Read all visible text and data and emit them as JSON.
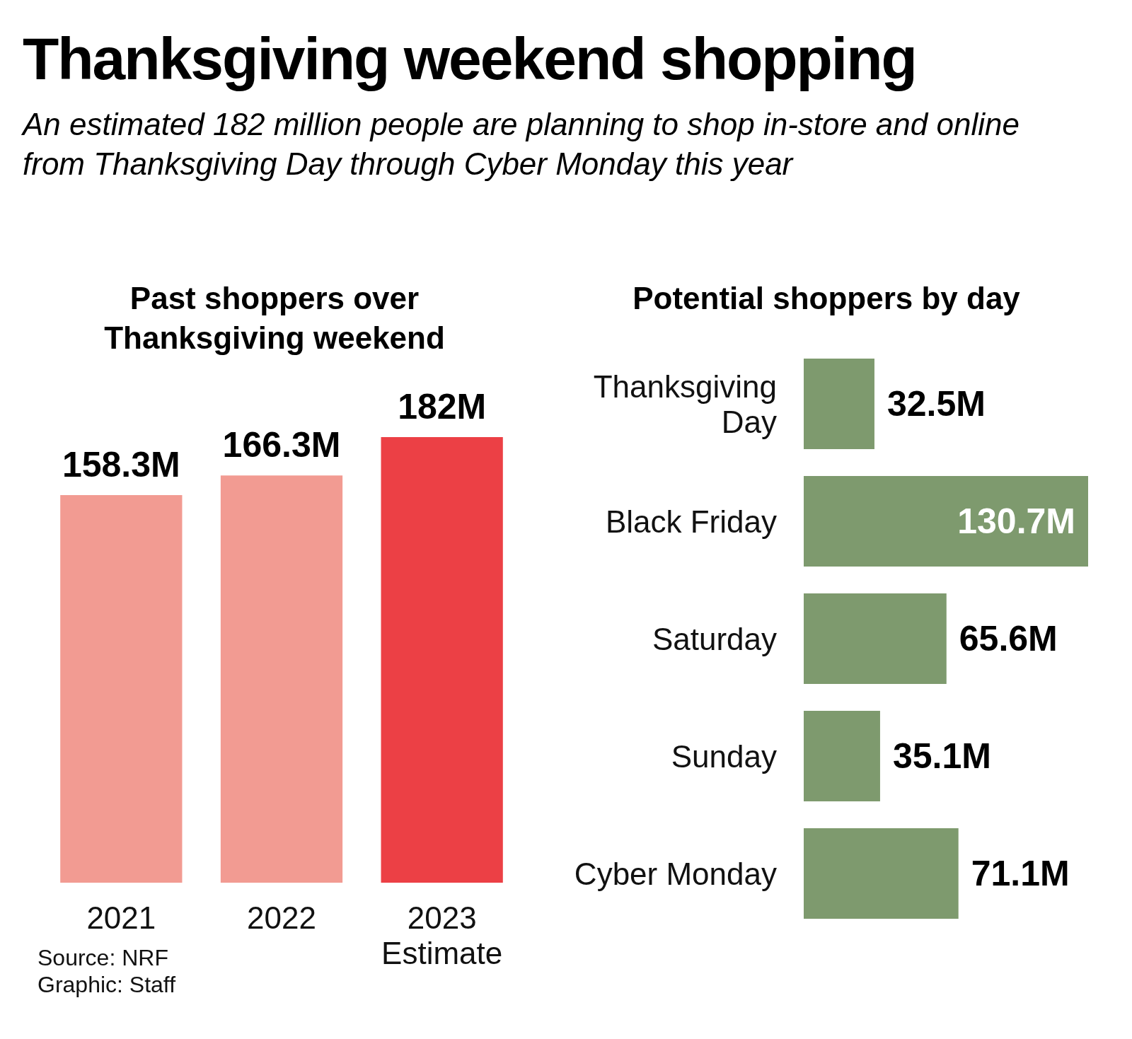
{
  "chart_data": [
    {
      "type": "other",
      "title": "Thanksgiving weekend shopping",
      "subtitle": "An estimated 182 million people are planning to shop in-store and online from Thanksgiving Day through Cyber Monday this year"
    },
    {
      "type": "bar",
      "title": "Past shoppers over\nThanksgiving weekend",
      "categories": [
        "2021",
        "2022",
        "2023\nEstimate"
      ],
      "values": [
        158.3,
        166.3,
        182
      ],
      "colors": [
        "#f29b92",
        "#f29b92",
        "#ec4045"
      ],
      "value_labels": [
        "158.3M",
        "166.3M",
        "182M"
      ],
      "annotations": [
        "Source: NRF",
        "Graphic: Staff"
      ]
    },
    {
      "type": "bar",
      "orientation": "horizontal",
      "title": "Potential shoppers by day",
      "categories": [
        "Thanksgiving\nDay",
        "Black Friday",
        "Saturday",
        "Sunday",
        "Cyber Monday"
      ],
      "values": [
        32.5,
        130.7,
        65.6,
        35.1,
        71.1
      ],
      "color": "#7e9a6e",
      "value_labels": [
        "32.5M",
        "130.7M",
        "65.6M",
        "35.1M",
        "71.1M"
      ]
    }
  ]
}
